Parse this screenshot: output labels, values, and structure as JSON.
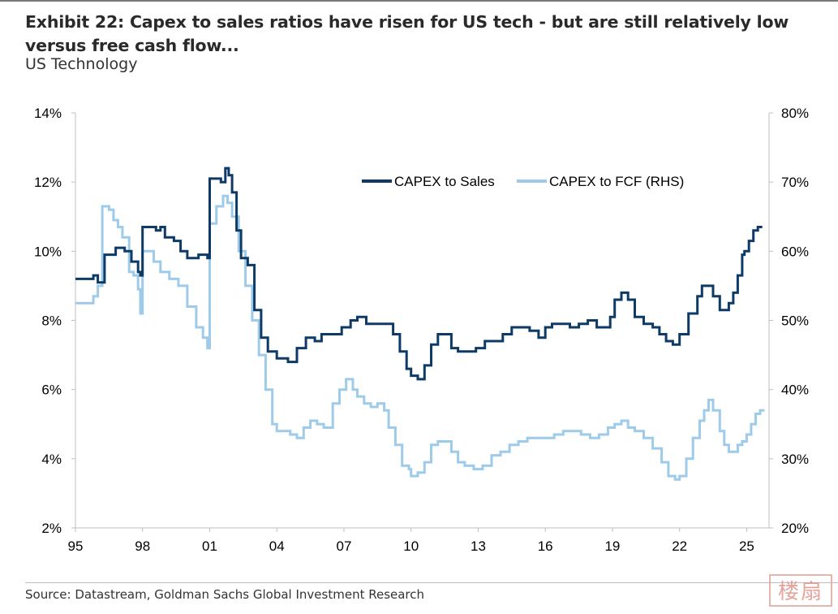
{
  "header": {
    "title": "Exhibit 22: Capex to sales ratios have risen for US tech - but are still relatively low versus free cash flow...",
    "subtitle": "US Technology"
  },
  "footer": {
    "source": "Source: Datastream, Goldman Sachs Global Investment Research",
    "stamp_text": "楼扇"
  },
  "colors": {
    "series_dark": "#0d3a66",
    "series_light": "#9ecbe9",
    "axis": "#bfbfbf",
    "text": "#000000"
  },
  "chart_data": {
    "type": "line",
    "title": "Exhibit 22: Capex to sales ratios have risen for US tech - but are still relatively low versus free cash flow...",
    "subtitle": "US Technology",
    "xlabel": "",
    "ylabel": "",
    "xlim": [
      1995.0,
      2026.0
    ],
    "ylim_left": [
      2,
      14
    ],
    "ylim_right": [
      20,
      80
    ],
    "grid": false,
    "legend_position": "top-right",
    "x_ticks": [
      1995,
      1998,
      2001,
      2004,
      2007,
      2010,
      2013,
      2016,
      2019,
      2022,
      2025
    ],
    "x_tick_labels": [
      "95",
      "98",
      "01",
      "04",
      "07",
      "10",
      "13",
      "16",
      "19",
      "22",
      "25"
    ],
    "y_left_ticks": [
      2,
      4,
      6,
      8,
      10,
      12,
      14
    ],
    "y_left_tick_labels": [
      "2%",
      "4%",
      "6%",
      "8%",
      "10%",
      "12%",
      "14%"
    ],
    "y_right_ticks": [
      20,
      30,
      40,
      50,
      60,
      70,
      80
    ],
    "y_right_tick_labels": [
      "20%",
      "30%",
      "40%",
      "50%",
      "60%",
      "70%",
      "80%"
    ],
    "series": [
      {
        "name": "CAPEX to Sales",
        "axis": "left",
        "x": [
          1995.0,
          1995.5,
          1995.8,
          1996.0,
          1996.3,
          1996.6,
          1996.8,
          1997.2,
          1997.5,
          1997.8,
          1997.9,
          1998.0,
          1998.3,
          1998.6,
          1998.8,
          1999.0,
          1999.4,
          1999.7,
          2000.0,
          2000.5,
          2000.9,
          2001.0,
          2001.2,
          2001.5,
          2001.7,
          2001.85,
          2002.0,
          2002.2,
          2002.4,
          2002.7,
          2003.0,
          2003.3,
          2003.6,
          2004.0,
          2004.5,
          2004.9,
          2005.3,
          2005.7,
          2006.0,
          2006.5,
          2006.9,
          2007.3,
          2007.6,
          2008.0,
          2008.5,
          2008.9,
          2009.2,
          2009.5,
          2009.8,
          2010.0,
          2010.3,
          2010.6,
          2010.9,
          2011.2,
          2011.5,
          2011.8,
          2012.1,
          2012.5,
          2012.9,
          2013.3,
          2013.7,
          2014.1,
          2014.5,
          2014.9,
          2015.3,
          2015.7,
          2016.0,
          2016.3,
          2016.7,
          2017.1,
          2017.5,
          2017.9,
          2018.3,
          2018.6,
          2018.9,
          2019.1,
          2019.4,
          2019.7,
          2020.0,
          2020.4,
          2020.8,
          2021.1,
          2021.4,
          2021.7,
          2022.0,
          2022.4,
          2022.8,
          2023.0,
          2023.2,
          2023.5,
          2023.8,
          2024.0,
          2024.2,
          2024.4,
          2024.6,
          2024.8,
          2024.9,
          2025.1,
          2025.3,
          2025.5,
          2025.7
        ],
        "values": [
          9.2,
          9.2,
          9.3,
          9.1,
          9.9,
          9.9,
          10.1,
          10.0,
          9.7,
          9.4,
          9.3,
          10.7,
          10.7,
          10.6,
          10.7,
          10.4,
          10.3,
          10.0,
          9.8,
          9.9,
          9.8,
          12.1,
          12.1,
          12.0,
          12.4,
          12.2,
          11.7,
          10.6,
          9.8,
          9.6,
          8.3,
          7.5,
          7.1,
          6.9,
          6.8,
          7.2,
          7.5,
          7.4,
          7.6,
          7.6,
          7.8,
          8.0,
          8.1,
          7.9,
          7.9,
          7.9,
          7.6,
          7.1,
          6.6,
          6.4,
          6.3,
          6.7,
          7.3,
          7.6,
          7.6,
          7.2,
          7.1,
          7.1,
          7.2,
          7.4,
          7.4,
          7.6,
          7.8,
          7.8,
          7.7,
          7.5,
          7.8,
          7.9,
          7.9,
          7.8,
          7.9,
          8.0,
          7.8,
          7.8,
          8.1,
          8.6,
          8.8,
          8.6,
          8.1,
          7.9,
          7.8,
          7.6,
          7.4,
          7.3,
          7.6,
          8.2,
          8.7,
          9.0,
          9.0,
          8.7,
          8.3,
          8.3,
          8.5,
          8.8,
          9.3,
          9.9,
          10.0,
          10.3,
          10.6,
          10.7,
          10.7
        ]
      },
      {
        "name": "CAPEX to FCF (RHS)",
        "axis": "right",
        "x": [
          1995.0,
          1995.5,
          1995.8,
          1996.0,
          1996.2,
          1996.5,
          1996.7,
          1996.9,
          1997.1,
          1997.4,
          1997.6,
          1997.8,
          1997.9,
          1998.0,
          1998.2,
          1998.5,
          1998.8,
          1999.2,
          1999.6,
          2000.0,
          2000.4,
          2000.7,
          2000.9,
          2001.0,
          2001.3,
          2001.6,
          2001.8,
          2002.0,
          2002.3,
          2002.6,
          2002.9,
          2003.2,
          2003.5,
          2003.8,
          2004.0,
          2004.3,
          2004.6,
          2004.9,
          2005.2,
          2005.5,
          2005.8,
          2006.1,
          2006.5,
          2006.8,
          2007.1,
          2007.4,
          2007.6,
          2007.9,
          2008.2,
          2008.5,
          2008.8,
          2009.0,
          2009.3,
          2009.6,
          2009.9,
          2010.0,
          2010.3,
          2010.6,
          2010.9,
          2011.2,
          2011.5,
          2011.8,
          2012.1,
          2012.4,
          2012.8,
          2013.2,
          2013.6,
          2014.0,
          2014.4,
          2014.8,
          2015.2,
          2015.6,
          2016.0,
          2016.4,
          2016.8,
          2017.2,
          2017.6,
          2018.0,
          2018.4,
          2018.8,
          2019.1,
          2019.4,
          2019.7,
          2020.0,
          2020.4,
          2020.8,
          2021.2,
          2021.5,
          2021.8,
          2022.0,
          2022.3,
          2022.6,
          2022.9,
          2023.1,
          2023.3,
          2023.5,
          2023.8,
          2024.0,
          2024.2,
          2024.4,
          2024.6,
          2024.8,
          2025.0,
          2025.2,
          2025.4,
          2025.6,
          2025.8
        ],
        "values": [
          52.5,
          52.5,
          53.5,
          55.0,
          66.5,
          66.0,
          64.5,
          63.5,
          62.0,
          57.0,
          56.5,
          54.5,
          51.0,
          60.0,
          60.0,
          58.5,
          57.0,
          56.0,
          55.0,
          52.0,
          49.0,
          47.5,
          46.0,
          64.0,
          66.5,
          68.0,
          67.0,
          65.0,
          60.0,
          55.0,
          50.0,
          45.0,
          40.0,
          35.0,
          34.0,
          34.0,
          33.5,
          33.0,
          34.5,
          35.5,
          35.0,
          34.5,
          38.0,
          40.0,
          41.5,
          40.0,
          39.0,
          38.0,
          37.5,
          38.0,
          37.0,
          34.5,
          32.0,
          29.0,
          28.5,
          27.5,
          28.0,
          29.5,
          32.0,
          32.5,
          32.5,
          31.0,
          29.5,
          29.0,
          28.5,
          29.0,
          30.5,
          31.0,
          32.0,
          32.5,
          33.0,
          33.0,
          33.0,
          33.5,
          34.0,
          34.0,
          33.5,
          33.0,
          33.5,
          34.5,
          35.0,
          35.5,
          34.5,
          34.0,
          33.0,
          31.5,
          29.5,
          27.5,
          27.0,
          27.5,
          30.0,
          33.0,
          35.5,
          37.0,
          38.5,
          37.0,
          34.0,
          32.0,
          31.0,
          31.0,
          32.0,
          32.5,
          33.5,
          35.0,
          36.5,
          37.0,
          37.0
        ]
      }
    ]
  }
}
